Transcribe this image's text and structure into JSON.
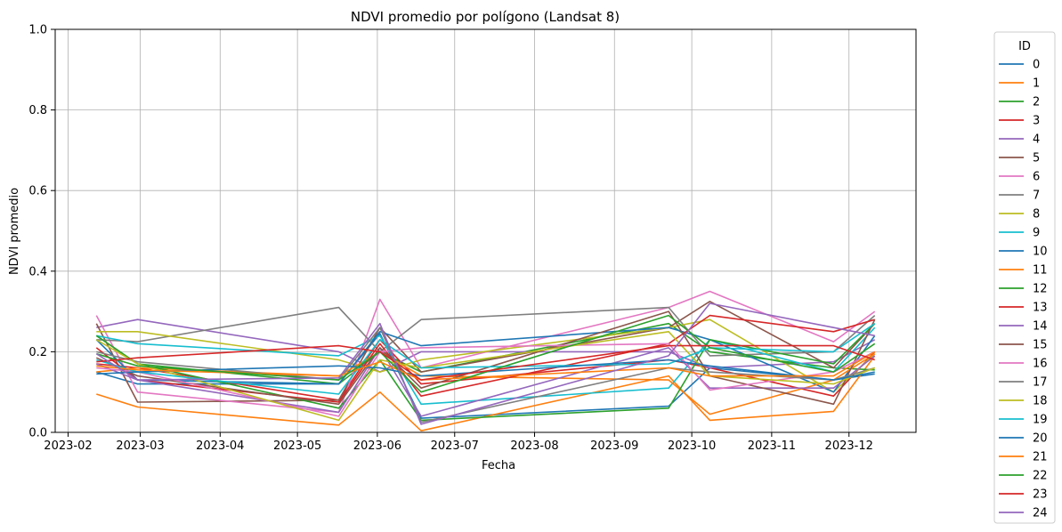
{
  "chart_data": {
    "type": "line",
    "title": "NDVI promedio por polígono (Landsat 8)",
    "xlabel": "Fecha",
    "ylabel": "NDVI promedio",
    "ylim": [
      0,
      1
    ],
    "yticks": [
      "0.0",
      "0.2",
      "0.4",
      "0.6",
      "0.8",
      "1.0"
    ],
    "xlim": [
      "2023-01-27",
      "2023-12-27"
    ],
    "xticks": [
      "2023-02",
      "2023-03",
      "2023-04",
      "2023-05",
      "2023-06",
      "2023-07",
      "2023-08",
      "2023-09",
      "2023-10",
      "2023-11",
      "2023-12"
    ],
    "grid": true,
    "legend": {
      "title": "ID",
      "placement": "outside-right"
    },
    "x": [
      "2023-02-12",
      "2023-02-28",
      "2023-05-17",
      "2023-06-02",
      "2023-06-18",
      "2023-09-22",
      "2023-10-08",
      "2023-11-25",
      "2023-12-11"
    ],
    "series": [
      {
        "name": "0",
        "color": "#1f77b4",
        "values": [
          0.15,
          0.12,
          0.12,
          0.245,
          0.035,
          0.065,
          0.16,
          0.13,
          0.145
        ]
      },
      {
        "name": "1",
        "color": "#ff7f0e",
        "values": [
          0.095,
          0.063,
          0.018,
          0.1,
          0.004,
          0.14,
          0.03,
          0.052,
          0.19
        ]
      },
      {
        "name": "2",
        "color": "#2ca02c",
        "values": [
          0.24,
          0.17,
          0.12,
          0.2,
          0.15,
          0.27,
          0.2,
          0.16,
          0.155
        ]
      },
      {
        "name": "3",
        "color": "#d62728",
        "values": [
          0.17,
          0.16,
          0.08,
          0.23,
          0.12,
          0.18,
          0.16,
          0.09,
          0.2
        ]
      },
      {
        "name": "4",
        "color": "#9467bd",
        "values": [
          0.26,
          0.28,
          0.2,
          0.15,
          0.2,
          0.2,
          0.16,
          0.175,
          0.23
        ]
      },
      {
        "name": "5",
        "color": "#8c564b",
        "values": [
          0.27,
          0.075,
          0.08,
          0.26,
          0.15,
          0.26,
          0.325,
          0.16,
          0.27
        ]
      },
      {
        "name": "6",
        "color": "#e377c2",
        "values": [
          0.29,
          0.1,
          0.05,
          0.33,
          0.16,
          0.31,
          0.35,
          0.225,
          0.3
        ]
      },
      {
        "name": "7",
        "color": "#7f7f7f",
        "values": [
          0.23,
          0.225,
          0.31,
          0.2,
          0.28,
          0.31,
          0.19,
          0.2,
          0.29
        ]
      },
      {
        "name": "8",
        "color": "#bcbd22",
        "values": [
          0.25,
          0.25,
          0.18,
          0.15,
          0.18,
          0.26,
          0.28,
          0.1,
          0.195
        ]
      },
      {
        "name": "9",
        "color": "#17becf",
        "values": [
          0.24,
          0.22,
          0.19,
          0.24,
          0.07,
          0.11,
          0.23,
          0.15,
          0.26
        ]
      },
      {
        "name": "10",
        "color": "#1f77b4",
        "values": [
          0.23,
          0.13,
          0.12,
          0.25,
          0.215,
          0.26,
          0.23,
          0.1,
          0.24
        ]
      },
      {
        "name": "11",
        "color": "#ff7f0e",
        "values": [
          0.15,
          0.16,
          0.14,
          0.2,
          0.14,
          0.13,
          0.045,
          0.13,
          0.195
        ]
      },
      {
        "name": "12",
        "color": "#2ca02c",
        "values": [
          0.24,
          0.17,
          0.06,
          0.18,
          0.03,
          0.06,
          0.23,
          0.17,
          0.27
        ]
      },
      {
        "name": "13",
        "color": "#d62728",
        "values": [
          0.21,
          0.13,
          0.075,
          0.22,
          0.09,
          0.22,
          0.29,
          0.25,
          0.28
        ]
      },
      {
        "name": "14",
        "color": "#9467bd",
        "values": [
          0.17,
          0.13,
          0.05,
          0.21,
          0.04,
          0.21,
          0.11,
          0.11,
          0.19
        ]
      },
      {
        "name": "15",
        "color": "#8c564b",
        "values": [
          0.185,
          0.14,
          0.07,
          0.21,
          0.11,
          0.3,
          0.14,
          0.07,
          0.28
        ]
      },
      {
        "name": "16",
        "color": "#e377c2",
        "values": [
          0.16,
          0.15,
          0.04,
          0.2,
          0.21,
          0.22,
          0.105,
          0.15,
          0.2
        ]
      },
      {
        "name": "17",
        "color": "#7f7f7f",
        "values": [
          0.2,
          0.175,
          0.13,
          0.26,
          0.025,
          0.16,
          0.15,
          0.13,
          0.16
        ]
      },
      {
        "name": "18",
        "color": "#bcbd22",
        "values": [
          0.23,
          0.17,
          0.03,
          0.18,
          0.16,
          0.25,
          0.14,
          0.12,
          0.16
        ]
      },
      {
        "name": "19",
        "color": "#17becf",
        "values": [
          0.18,
          0.15,
          0.095,
          0.23,
          0.16,
          0.17,
          0.21,
          0.2,
          0.27
        ]
      },
      {
        "name": "20",
        "color": "#1f77b4",
        "values": [
          0.145,
          0.15,
          0.165,
          0.16,
          0.14,
          0.18,
          0.165,
          0.13,
          0.15
        ]
      },
      {
        "name": "21",
        "color": "#ff7f0e",
        "values": [
          0.165,
          0.155,
          0.14,
          0.175,
          0.13,
          0.16,
          0.14,
          0.14,
          0.2
        ]
      },
      {
        "name": "22",
        "color": "#2ca02c",
        "values": [
          0.195,
          0.165,
          0.13,
          0.2,
          0.1,
          0.29,
          0.21,
          0.15,
          0.22
        ]
      },
      {
        "name": "23",
        "color": "#d62728",
        "values": [
          0.175,
          0.185,
          0.215,
          0.2,
          0.13,
          0.215,
          0.215,
          0.215,
          0.18
        ]
      },
      {
        "name": "24",
        "color": "#9467bd",
        "values": [
          0.195,
          0.13,
          0.135,
          0.27,
          0.02,
          0.19,
          0.32,
          0.26,
          0.24
        ]
      }
    ]
  }
}
